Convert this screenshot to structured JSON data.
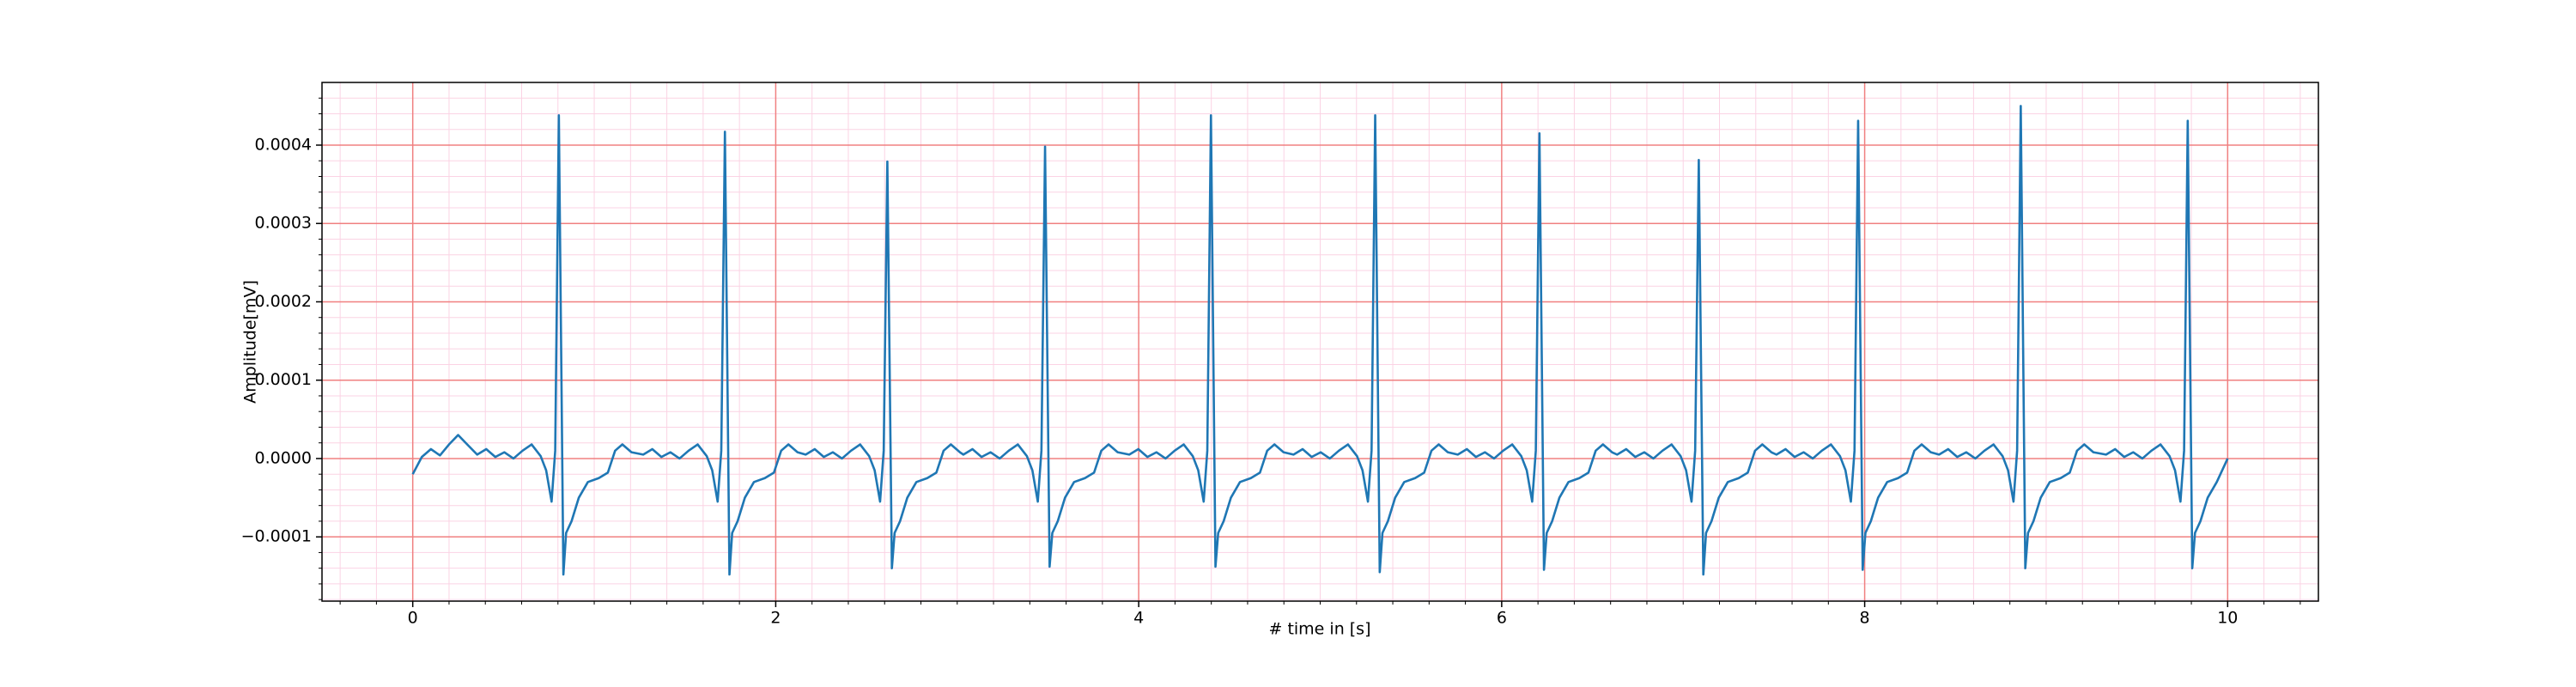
{
  "chart_data": {
    "type": "line",
    "xlabel": "# time in [s]",
    "ylabel": "Amplitude[mV]",
    "xlim": [
      -0.5,
      10.5
    ],
    "ylim": [
      -0.000182,
      0.00048
    ],
    "xticks": [
      0,
      2,
      4,
      6,
      8,
      10
    ],
    "yticks": [
      {
        "value": -0.0001,
        "label": "−0.0001"
      },
      {
        "value": 0,
        "label": "0.0000"
      },
      0.0001,
      0.0002,
      0.0003,
      0.0004
    ],
    "xminorticks": [
      -0.4,
      -0.2,
      0.2,
      0.4,
      0.6,
      0.8,
      1.0,
      1.2,
      1.4,
      1.6,
      1.8,
      2.2,
      2.4,
      2.6,
      2.8,
      3.0,
      3.2,
      3.4,
      3.6,
      3.8,
      4.2,
      4.4,
      4.6,
      4.8,
      5.0,
      5.2,
      5.4,
      5.6,
      5.8,
      6.2,
      6.4,
      6.6,
      6.8,
      7.0,
      7.2,
      7.4,
      7.6,
      7.8,
      8.2,
      8.4,
      8.6,
      8.8,
      9.0,
      9.2,
      9.4,
      9.6,
      9.8,
      10.2,
      10.4
    ],
    "yminorticks": [
      -0.00018,
      -0.00016,
      -0.00014,
      -0.00012,
      -8e-05,
      -6e-05,
      -4e-05,
      -2e-05,
      2e-05,
      4e-05,
      6e-05,
      8e-05,
      0.00012,
      0.00014,
      0.00016,
      0.00018,
      0.00022,
      0.00024,
      0.00026,
      0.00028,
      0.00032,
      0.00034,
      0.00036,
      0.00038,
      0.00042,
      0.00044,
      0.00046
    ],
    "grid": true,
    "major_grid_color": "#f08080",
    "minor_grid_color": "#fbd3e4",
    "series": [
      {
        "color": "#1f77b4",
        "x": [
          0,
          0.05,
          0.1,
          0.15,
          0.2,
          0.25,
          0.3,
          0.355,
          0.405,
          0.455,
          0.505,
          0.555,
          0.605,
          0.655,
          0.705,
          0.735,
          0.765,
          0.785,
          0.805,
          0.83,
          0.845,
          0.875,
          0.915,
          0.965,
          1.025,
          1.075,
          1.115,
          1.155,
          1.205,
          1.27,
          1.32,
          1.37,
          1.42,
          1.47,
          1.52,
          1.57,
          1.62,
          1.65,
          1.68,
          1.7,
          1.72,
          1.745,
          1.76,
          1.79,
          1.83,
          1.88,
          1.94,
          1.99,
          2.03,
          2.07,
          2.12,
          2.165,
          2.215,
          2.265,
          2.315,
          2.365,
          2.415,
          2.465,
          2.515,
          2.545,
          2.575,
          2.595,
          2.615,
          2.64,
          2.655,
          2.685,
          2.725,
          2.775,
          2.835,
          2.885,
          2.925,
          2.965,
          3.015,
          3.034,
          3.084,
          3.134,
          3.184,
          3.234,
          3.284,
          3.334,
          3.384,
          3.414,
          3.444,
          3.464,
          3.484,
          3.509,
          3.524,
          3.554,
          3.594,
          3.644,
          3.704,
          3.754,
          3.794,
          3.834,
          3.884,
          3.948,
          3.998,
          4.048,
          4.098,
          4.148,
          4.198,
          4.248,
          4.298,
          4.328,
          4.358,
          4.378,
          4.398,
          4.423,
          4.438,
          4.468,
          4.508,
          4.558,
          4.618,
          4.668,
          4.708,
          4.748,
          4.798,
          4.853,
          4.903,
          4.953,
          5.003,
          5.053,
          5.103,
          5.153,
          5.203,
          5.233,
          5.263,
          5.283,
          5.303,
          5.328,
          5.343,
          5.373,
          5.413,
          5.463,
          5.523,
          5.573,
          5.613,
          5.653,
          5.703,
          5.758,
          5.808,
          5.858,
          5.908,
          5.958,
          6.008,
          6.058,
          6.108,
          6.138,
          6.168,
          6.188,
          6.208,
          6.233,
          6.248,
          6.278,
          6.318,
          6.368,
          6.428,
          6.478,
          6.518,
          6.558,
          6.608,
          6.636,
          6.686,
          6.736,
          6.786,
          6.836,
          6.886,
          6.936,
          6.986,
          7.016,
          7.046,
          7.066,
          7.086,
          7.111,
          7.126,
          7.156,
          7.196,
          7.246,
          7.306,
          7.356,
          7.396,
          7.436,
          7.486,
          7.514,
          7.564,
          7.614,
          7.664,
          7.714,
          7.764,
          7.814,
          7.864,
          7.894,
          7.924,
          7.944,
          7.964,
          7.989,
          8.004,
          8.034,
          8.074,
          8.124,
          8.184,
          8.234,
          8.274,
          8.314,
          8.364,
          8.41,
          8.46,
          8.51,
          8.56,
          8.61,
          8.66,
          8.71,
          8.76,
          8.79,
          8.82,
          8.84,
          8.86,
          8.885,
          8.9,
          8.93,
          8.97,
          9.02,
          9.08,
          9.13,
          9.17,
          9.21,
          9.26,
          9.33,
          9.38,
          9.43,
          9.48,
          9.53,
          9.58,
          9.63,
          9.68,
          9.71,
          9.74,
          9.76,
          9.78,
          9.805,
          9.82,
          9.85,
          9.89,
          9.94,
          10.0
        ],
        "values": [
          -2e-05,
          2e-06,
          1.2e-05,
          4e-06,
          1.8e-05,
          3e-05,
          1.8e-05,
          5e-06,
          1.2e-05,
          2e-06,
          8e-06,
          0,
          1e-05,
          1.8e-05,
          3e-06,
          -1.5e-05,
          -5.5e-05,
          1e-05,
          0.000438,
          -0.000148,
          -9.5e-05,
          -8e-05,
          -5e-05,
          -3e-05,
          -2.5e-05,
          -1.8e-05,
          1e-05,
          1.8e-05,
          8e-06,
          5e-06,
          1.2e-05,
          2e-06,
          8e-06,
          0,
          1e-05,
          1.8e-05,
          3e-06,
          -1.5e-05,
          -5.5e-05,
          1e-05,
          0.000417,
          -0.000148,
          -9.5e-05,
          -8e-05,
          -5e-05,
          -3e-05,
          -2.5e-05,
          -1.8e-05,
          1e-05,
          1.8e-05,
          8e-06,
          5e-06,
          1.2e-05,
          2e-06,
          8e-06,
          0,
          1e-05,
          1.8e-05,
          3e-06,
          -1.5e-05,
          -5.5e-05,
          1e-05,
          0.000379,
          -0.00014,
          -9.5e-05,
          -8e-05,
          -5e-05,
          -3e-05,
          -2.5e-05,
          -1.8e-05,
          1e-05,
          1.8e-05,
          8e-06,
          5e-06,
          1.2e-05,
          2e-06,
          8e-06,
          0,
          1e-05,
          1.8e-05,
          3e-06,
          -1.5e-05,
          -5.5e-05,
          1e-05,
          0.000398,
          -0.000138,
          -9.5e-05,
          -8e-05,
          -5e-05,
          -3e-05,
          -2.5e-05,
          -1.8e-05,
          1e-05,
          1.8e-05,
          8e-06,
          5e-06,
          1.2e-05,
          2e-06,
          8e-06,
          0,
          1e-05,
          1.8e-05,
          3e-06,
          -1.5e-05,
          -5.5e-05,
          1e-05,
          0.000438,
          -0.000138,
          -9.5e-05,
          -8e-05,
          -5e-05,
          -3e-05,
          -2.5e-05,
          -1.8e-05,
          1e-05,
          1.8e-05,
          8e-06,
          5e-06,
          1.2e-05,
          2e-06,
          8e-06,
          0,
          1e-05,
          1.8e-05,
          3e-06,
          -1.5e-05,
          -5.5e-05,
          1e-05,
          0.000438,
          -0.000145,
          -9.5e-05,
          -8e-05,
          -5e-05,
          -3e-05,
          -2.5e-05,
          -1.8e-05,
          1e-05,
          1.8e-05,
          8e-06,
          5e-06,
          1.2e-05,
          2e-06,
          8e-06,
          0,
          1e-05,
          1.8e-05,
          3e-06,
          -1.5e-05,
          -5.5e-05,
          1e-05,
          0.000415,
          -0.000142,
          -9.5e-05,
          -8e-05,
          -5e-05,
          -3e-05,
          -2.5e-05,
          -1.8e-05,
          1e-05,
          1.8e-05,
          8e-06,
          5e-06,
          1.2e-05,
          2e-06,
          8e-06,
          0,
          1e-05,
          1.8e-05,
          3e-06,
          -1.5e-05,
          -5.5e-05,
          1e-05,
          0.000381,
          -0.000148,
          -9.5e-05,
          -8e-05,
          -5e-05,
          -3e-05,
          -2.5e-05,
          -1.8e-05,
          1e-05,
          1.8e-05,
          8e-06,
          5e-06,
          1.2e-05,
          2e-06,
          8e-06,
          0,
          1e-05,
          1.8e-05,
          3e-06,
          -1.5e-05,
          -5.5e-05,
          1e-05,
          0.000431,
          -0.000142,
          -9.5e-05,
          -8e-05,
          -5e-05,
          -3e-05,
          -2.5e-05,
          -1.8e-05,
          1e-05,
          1.8e-05,
          8e-06,
          5e-06,
          1.2e-05,
          2e-06,
          8e-06,
          0,
          1e-05,
          1.8e-05,
          3e-06,
          -1.5e-05,
          -5.5e-05,
          1e-05,
          0.00045,
          -0.00014,
          -9.5e-05,
          -8e-05,
          -5e-05,
          -3e-05,
          -2.5e-05,
          -1.8e-05,
          1e-05,
          1.8e-05,
          8e-06,
          5e-06,
          1.2e-05,
          2e-06,
          8e-06,
          0,
          1e-05,
          1.8e-05,
          3e-06,
          -1.5e-05,
          -5.5e-05,
          1e-05,
          0.000431,
          -0.00014,
          -9.5e-05,
          -8e-05,
          -5e-05,
          -3e-05,
          0
        ]
      }
    ]
  }
}
